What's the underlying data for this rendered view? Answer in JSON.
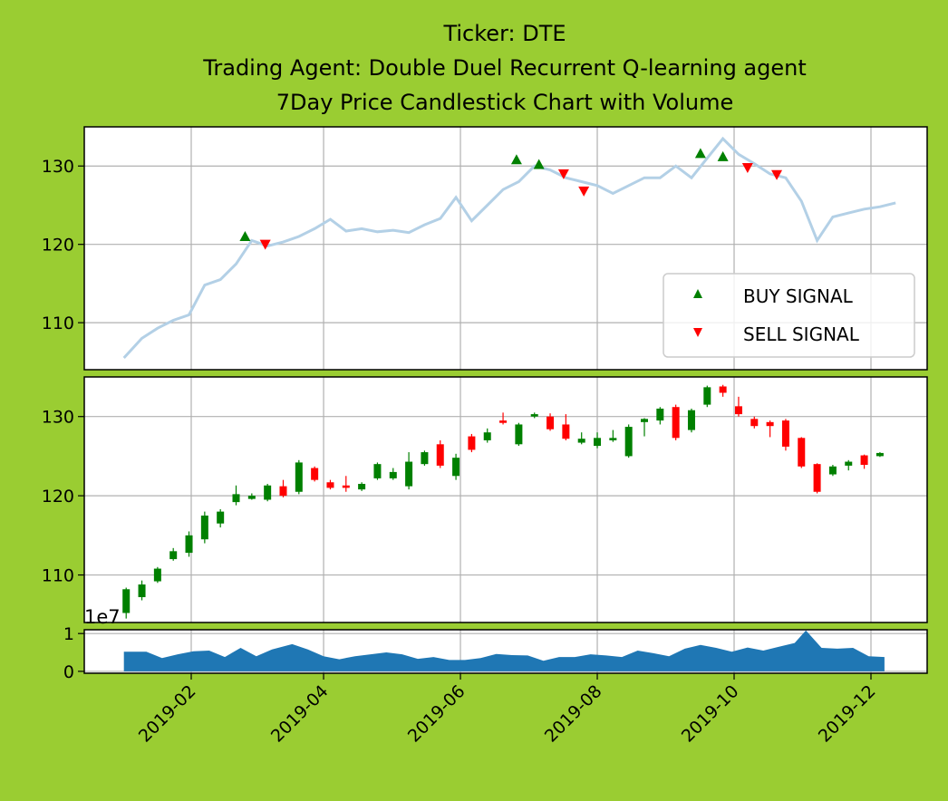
{
  "chart_data": {
    "type": "candlestick",
    "title_lines": [
      "Ticker: DTE",
      "Trading Agent: Double Duel Recurrent Q-learning agent",
      "7Day Price Candlestick Chart with Volume"
    ],
    "x_tick_labels": [
      "2019-02",
      "2019-04",
      "2019-06",
      "2019-08",
      "2019-10",
      "2019-12"
    ],
    "volume_exponent_label": "1e7",
    "grid": true,
    "legend_position": "lower-right",
    "colors": {
      "background": "#9acd32",
      "price_line": "#b3d0e6",
      "buy": "#008000",
      "sell": "#ff0000",
      "up_candle": "#008000",
      "down_candle": "#ff0000",
      "volume": "#1f77b4"
    },
    "price_panel": {
      "ylim": [
        104,
        135
      ],
      "yticks": [
        110,
        120,
        130
      ],
      "legend": [
        {
          "label": "BUY SIGNAL",
          "color": "#008000",
          "marker": "triangle-up"
        },
        {
          "label": "SELL SIGNAL",
          "color": "#ff0000",
          "marker": "triangle-down"
        }
      ],
      "close_line": [
        [
          "2019-01-02",
          105.5
        ],
        [
          "2019-01-10",
          108.0
        ],
        [
          "2019-01-17",
          109.3
        ],
        [
          "2019-01-24",
          110.3
        ],
        [
          "2019-01-31",
          111.0
        ],
        [
          "2019-02-07",
          114.8
        ],
        [
          "2019-02-14",
          115.5
        ],
        [
          "2019-02-21",
          117.5
        ],
        [
          "2019-02-28",
          120.5
        ],
        [
          "2019-03-07",
          119.8
        ],
        [
          "2019-03-14",
          120.3
        ],
        [
          "2019-03-21",
          121.0
        ],
        [
          "2019-03-28",
          122.0
        ],
        [
          "2019-04-04",
          123.2
        ],
        [
          "2019-04-11",
          121.7
        ],
        [
          "2019-04-18",
          122.0
        ],
        [
          "2019-04-25",
          121.6
        ],
        [
          "2019-05-02",
          121.8
        ],
        [
          "2019-05-09",
          121.5
        ],
        [
          "2019-05-16",
          122.5
        ],
        [
          "2019-05-23",
          123.3
        ],
        [
          "2019-05-30",
          126.0
        ],
        [
          "2019-06-06",
          123.0
        ],
        [
          "2019-06-13",
          125.0
        ],
        [
          "2019-06-20",
          127.0
        ],
        [
          "2019-06-27",
          128.0
        ],
        [
          "2019-07-04",
          130.0
        ],
        [
          "2019-07-11",
          129.5
        ],
        [
          "2019-07-18",
          128.5
        ],
        [
          "2019-07-25",
          128.0
        ],
        [
          "2019-08-01",
          127.5
        ],
        [
          "2019-08-08",
          126.5
        ],
        [
          "2019-08-15",
          127.5
        ],
        [
          "2019-08-22",
          128.5
        ],
        [
          "2019-08-29",
          128.5
        ],
        [
          "2019-09-05",
          130.0
        ],
        [
          "2019-09-12",
          128.5
        ],
        [
          "2019-09-19",
          131.0
        ],
        [
          "2019-09-26",
          133.5
        ],
        [
          "2019-10-03",
          131.5
        ],
        [
          "2019-10-10",
          130.3
        ],
        [
          "2019-10-17",
          129.0
        ],
        [
          "2019-10-24",
          128.5
        ],
        [
          "2019-10-31",
          125.5
        ],
        [
          "2019-11-07",
          120.5
        ],
        [
          "2019-11-14",
          123.5
        ],
        [
          "2019-11-21",
          124.0
        ],
        [
          "2019-11-28",
          124.5
        ],
        [
          "2019-12-05",
          124.8
        ],
        [
          "2019-12-12",
          125.3
        ]
      ],
      "buy_signals": [
        [
          "2019-02-25",
          121.0
        ],
        [
          "2019-06-26",
          130.8
        ],
        [
          "2019-07-06",
          130.2
        ],
        [
          "2019-09-16",
          131.6
        ],
        [
          "2019-09-26",
          131.2
        ]
      ],
      "sell_signals": [
        [
          "2019-03-06",
          120.0
        ],
        [
          "2019-07-17",
          129.0
        ],
        [
          "2019-07-26",
          126.8
        ],
        [
          "2019-10-07",
          129.8
        ],
        [
          "2019-10-20",
          128.9
        ]
      ]
    },
    "candle_panel": {
      "ylim": [
        104,
        135
      ],
      "yticks": [
        110,
        120,
        130
      ],
      "candles": [
        [
          "2019-01-03",
          105.2,
          108.2,
          104.5,
          108.4
        ],
        [
          "2019-01-10",
          107.2,
          108.8,
          106.8,
          109.3
        ],
        [
          "2019-01-17",
          109.2,
          110.8,
          109.0,
          111.0
        ],
        [
          "2019-01-24",
          112.0,
          113.0,
          111.8,
          113.4
        ],
        [
          "2019-01-31",
          112.8,
          115.0,
          112.3,
          115.5
        ],
        [
          "2019-02-07",
          114.5,
          117.5,
          114.0,
          118.0
        ],
        [
          "2019-02-14",
          116.5,
          118.0,
          116.0,
          118.3
        ],
        [
          "2019-02-21",
          119.2,
          120.2,
          118.8,
          121.3
        ],
        [
          "2019-02-28",
          119.6,
          120.0,
          119.5,
          120.3
        ],
        [
          "2019-03-07",
          119.5,
          121.3,
          119.3,
          121.5
        ],
        [
          "2019-03-14",
          121.2,
          120.0,
          119.8,
          122.0
        ],
        [
          "2019-03-21",
          120.5,
          124.2,
          120.2,
          124.5
        ],
        [
          "2019-03-28",
          123.5,
          122.0,
          121.8,
          123.7
        ],
        [
          "2019-04-04",
          121.7,
          121.0,
          120.8,
          122.0
        ],
        [
          "2019-04-11",
          121.3,
          121.0,
          120.5,
          122.5
        ],
        [
          "2019-04-18",
          120.8,
          121.5,
          120.6,
          121.7
        ],
        [
          "2019-04-25",
          122.2,
          124.0,
          122.0,
          124.2
        ],
        [
          "2019-05-02",
          122.2,
          123.0,
          122.0,
          123.5
        ],
        [
          "2019-05-09",
          121.2,
          124.3,
          120.8,
          125.5
        ],
        [
          "2019-05-16",
          124.0,
          125.5,
          123.8,
          125.7
        ],
        [
          "2019-05-23",
          126.5,
          123.8,
          123.5,
          127.0
        ],
        [
          "2019-05-30",
          122.5,
          124.8,
          122.0,
          125.3
        ],
        [
          "2019-06-06",
          127.5,
          125.8,
          125.5,
          127.8
        ],
        [
          "2019-06-13",
          127.0,
          128.0,
          126.7,
          128.5
        ],
        [
          "2019-06-20",
          129.5,
          129.2,
          129.0,
          130.5
        ],
        [
          "2019-06-27",
          126.5,
          129.0,
          126.3,
          129.2
        ],
        [
          "2019-07-04",
          130.0,
          130.3,
          129.8,
          130.5
        ],
        [
          "2019-07-11",
          130.0,
          128.4,
          128.2,
          130.4
        ],
        [
          "2019-07-18",
          129.0,
          127.2,
          127.0,
          130.3
        ],
        [
          "2019-07-25",
          126.7,
          127.2,
          126.5,
          128.0
        ],
        [
          "2019-08-01",
          126.3,
          127.3,
          126.0,
          128.0
        ],
        [
          "2019-08-08",
          127.0,
          127.3,
          126.8,
          128.3
        ],
        [
          "2019-08-15",
          125.0,
          128.7,
          124.8,
          129.0
        ],
        [
          "2019-08-22",
          129.3,
          129.7,
          127.5,
          129.8
        ],
        [
          "2019-08-29",
          129.5,
          131.0,
          129.0,
          131.2
        ],
        [
          "2019-09-05",
          131.2,
          127.3,
          127.0,
          131.5
        ],
        [
          "2019-09-12",
          128.3,
          130.8,
          128.0,
          131.0
        ],
        [
          "2019-09-19",
          131.5,
          133.7,
          131.2,
          133.9
        ],
        [
          "2019-09-26",
          133.8,
          133.0,
          132.5,
          134.0
        ],
        [
          "2019-10-03",
          131.3,
          130.3,
          130.0,
          132.5
        ],
        [
          "2019-10-10",
          129.7,
          128.8,
          128.5,
          130.0
        ],
        [
          "2019-10-17",
          129.3,
          128.8,
          127.4,
          129.5
        ],
        [
          "2019-10-24",
          129.5,
          126.2,
          125.7,
          129.7
        ],
        [
          "2019-10-31",
          127.3,
          123.7,
          123.5,
          127.4
        ],
        [
          "2019-11-07",
          124.0,
          120.5,
          120.3,
          124.1
        ],
        [
          "2019-11-14",
          122.7,
          123.7,
          122.5,
          123.9
        ],
        [
          "2019-11-21",
          123.8,
          124.3,
          123.2,
          124.5
        ],
        [
          "2019-11-28",
          125.1,
          123.9,
          123.4,
          125.2
        ],
        [
          "2019-12-05",
          125.0,
          125.4,
          124.9,
          125.5
        ]
      ]
    },
    "volume_panel": {
      "ylim": [
        -0.05,
        1.1
      ],
      "yticks": [
        0,
        1
      ],
      "values": [
        [
          "2019-01-02",
          0.52
        ],
        [
          "2019-01-12",
          0.52
        ],
        [
          "2019-01-19",
          0.35
        ],
        [
          "2019-01-26",
          0.45
        ],
        [
          "2019-02-02",
          0.53
        ],
        [
          "2019-02-09",
          0.55
        ],
        [
          "2019-02-16",
          0.38
        ],
        [
          "2019-02-23",
          0.62
        ],
        [
          "2019-03-02",
          0.4
        ],
        [
          "2019-03-09",
          0.58
        ],
        [
          "2019-03-18",
          0.72
        ],
        [
          "2019-03-25",
          0.58
        ],
        [
          "2019-04-01",
          0.4
        ],
        [
          "2019-04-08",
          0.32
        ],
        [
          "2019-04-15",
          0.4
        ],
        [
          "2019-04-22",
          0.45
        ],
        [
          "2019-04-29",
          0.5
        ],
        [
          "2019-05-06",
          0.45
        ],
        [
          "2019-05-13",
          0.33
        ],
        [
          "2019-05-20",
          0.38
        ],
        [
          "2019-05-27",
          0.3
        ],
        [
          "2019-06-03",
          0.3
        ],
        [
          "2019-06-10",
          0.35
        ],
        [
          "2019-06-17",
          0.46
        ],
        [
          "2019-06-24",
          0.43
        ],
        [
          "2019-07-01",
          0.42
        ],
        [
          "2019-07-08",
          0.28
        ],
        [
          "2019-07-15",
          0.38
        ],
        [
          "2019-07-22",
          0.38
        ],
        [
          "2019-07-29",
          0.45
        ],
        [
          "2019-08-05",
          0.42
        ],
        [
          "2019-08-12",
          0.38
        ],
        [
          "2019-08-19",
          0.55
        ],
        [
          "2019-08-26",
          0.48
        ],
        [
          "2019-09-02",
          0.4
        ],
        [
          "2019-09-09",
          0.6
        ],
        [
          "2019-09-16",
          0.7
        ],
        [
          "2019-09-23",
          0.62
        ],
        [
          "2019-09-30",
          0.52
        ],
        [
          "2019-10-07",
          0.63
        ],
        [
          "2019-10-14",
          0.55
        ],
        [
          "2019-10-21",
          0.65
        ],
        [
          "2019-10-28",
          0.75
        ],
        [
          "2019-11-02",
          1.08
        ],
        [
          "2019-11-09",
          0.62
        ],
        [
          "2019-11-16",
          0.6
        ],
        [
          "2019-11-23",
          0.62
        ],
        [
          "2019-11-30",
          0.4
        ],
        [
          "2019-12-07",
          0.38
        ]
      ]
    }
  }
}
